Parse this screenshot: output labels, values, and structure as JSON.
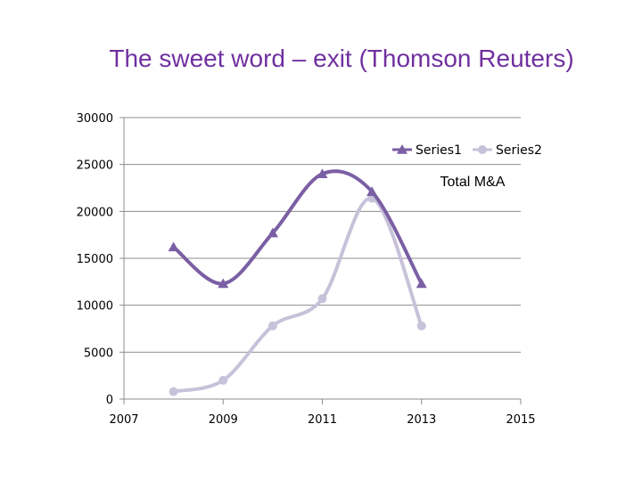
{
  "title": "The sweet word – exit (Thomson Reuters)",
  "chart_data": {
    "type": "scatter",
    "title": "The sweet word – exit (Thomson Reuters)",
    "annotation": "Total M&A",
    "xlabel": "",
    "ylabel": "",
    "xlim": [
      2007,
      2015
    ],
    "ylim": [
      0,
      30000
    ],
    "xticks": [
      2007,
      2009,
      2011,
      2013,
      2015
    ],
    "yticks": [
      0,
      5000,
      10000,
      15000,
      20000,
      25000,
      30000
    ],
    "grid": true,
    "legend_position": "top-right",
    "smooth": true,
    "series": [
      {
        "name": "Series1",
        "marker": "triangle",
        "color": "#7b5fa4",
        "x": [
          2008,
          2009,
          2010,
          2011,
          2012,
          2013
        ],
        "y": [
          16200,
          12300,
          17700,
          24000,
          22100,
          12300
        ]
      },
      {
        "name": "Series2",
        "marker": "circle",
        "color": "#c7c2d9",
        "x": [
          2008,
          2009,
          2010,
          2011,
          2012,
          2013
        ],
        "y": [
          800,
          2000,
          7800,
          10700,
          21400,
          7800
        ]
      }
    ]
  }
}
